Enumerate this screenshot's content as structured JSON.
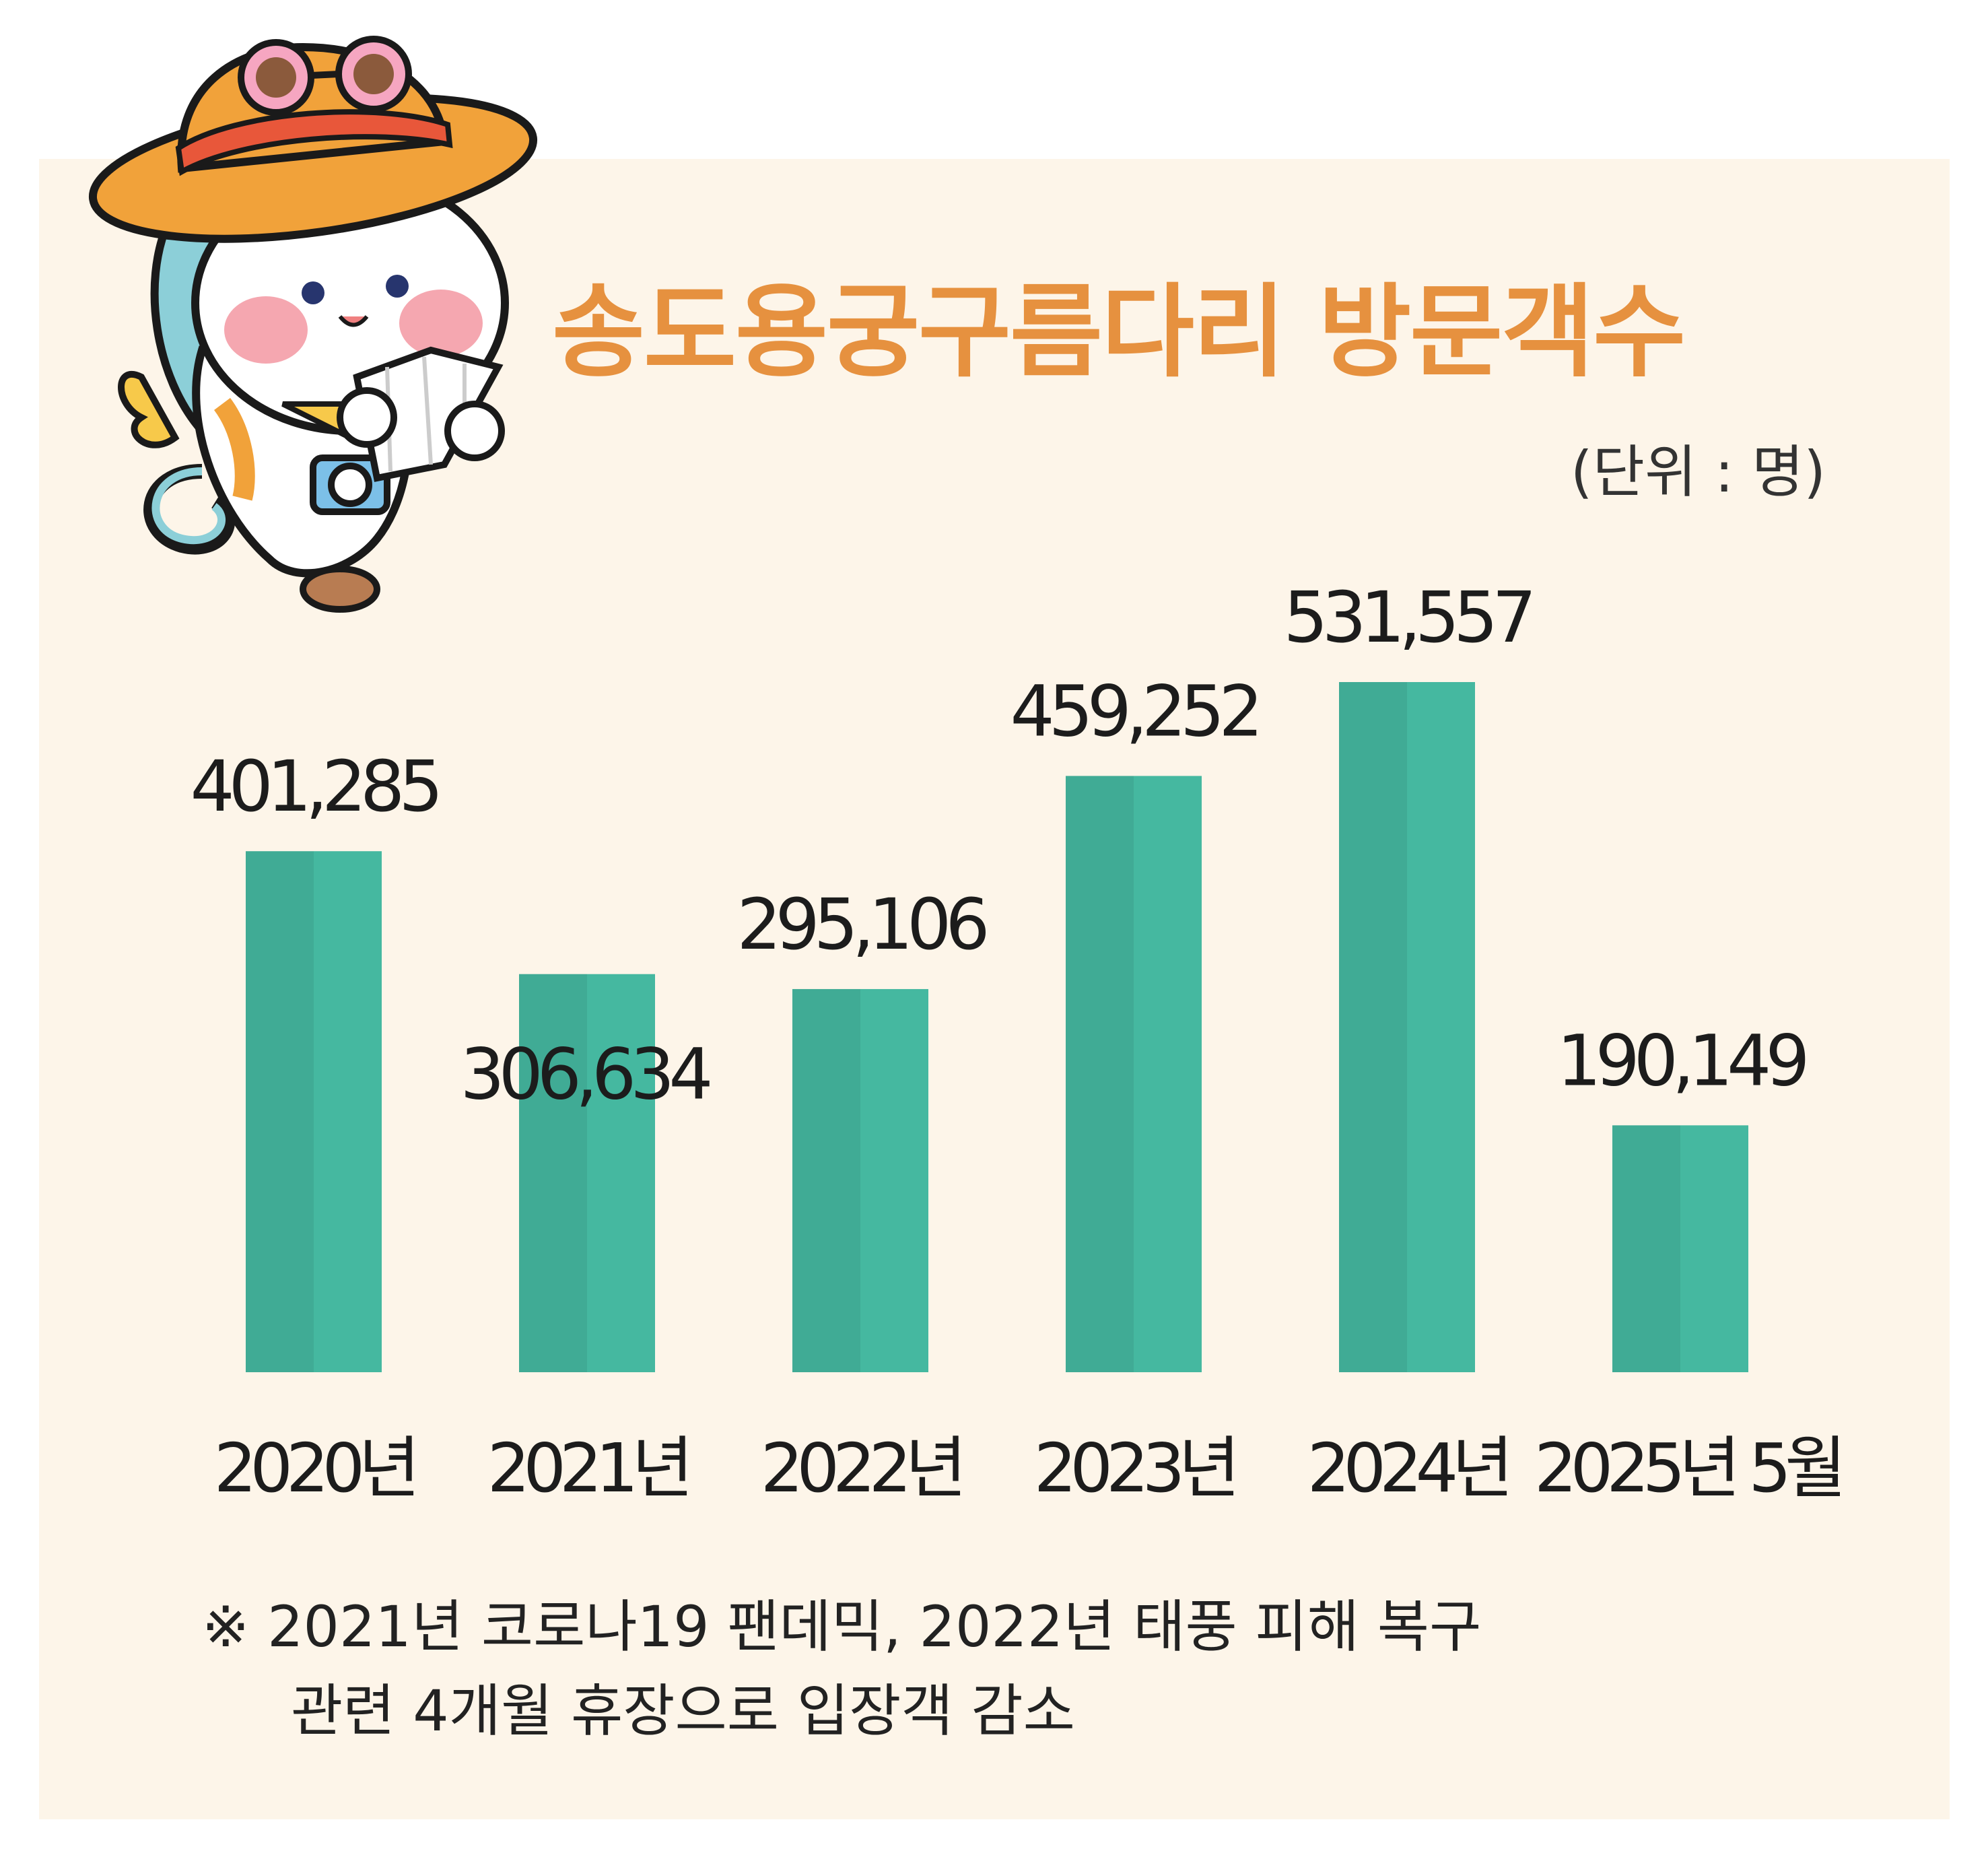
{
  "chart_data": {
    "type": "bar",
    "title": "송도용궁구름다리 방문객수",
    "unit_label": "(단위 : 명)",
    "categories": [
      "2020년",
      "2021년",
      "2022년",
      "2023년",
      "2024년",
      "2025년 5월"
    ],
    "values": [
      401285,
      306634,
      295106,
      459252,
      531557,
      190149
    ],
    "value_labels": [
      "401,285",
      "306,634",
      "295,106",
      "459,252",
      "531,557",
      "190,149"
    ],
    "ylim": [
      0,
      540000
    ],
    "grid": false,
    "legend": "none",
    "note": [
      "※  2021년 코로나19 팬데믹, 2022년 태풍 피해 복구",
      "관련 4개월 휴장으로 입장객 감소"
    ]
  },
  "colors": {
    "background": "#fdf5e9",
    "bar_light": "#45b8a0",
    "bar_dark": "#40ab95",
    "title": "#e6913f",
    "text": "#1c1c1c"
  },
  "mascot": {
    "icon": "cloud-mascot-with-hat-and-map-icon"
  }
}
